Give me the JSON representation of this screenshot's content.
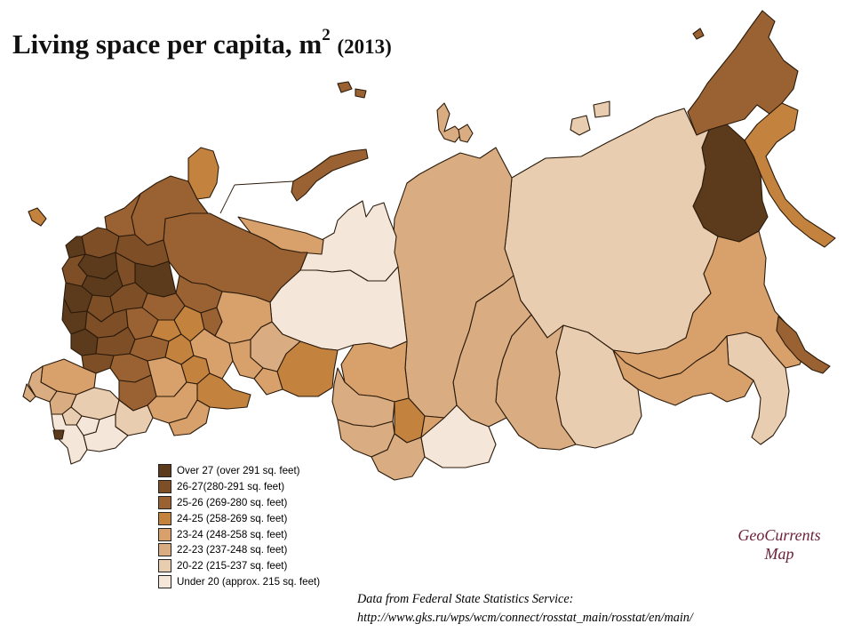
{
  "title": {
    "main": "Living space per capita, m",
    "superscript": "2",
    "year": "(2013)"
  },
  "legend": {
    "items": [
      {
        "label": "Over 27 (over  291 sq. feet)",
        "color": "#5c3a1c"
      },
      {
        "label": "26-27(280-291  sq. feet)",
        "color": "#7e4e26"
      },
      {
        "label": "25-26 (269-280  sq. feet)",
        "color": "#9a6232"
      },
      {
        "label": "24-25 (258-269  sq. feet)",
        "color": "#c3833f"
      },
      {
        "label": "23-24 (248-258  sq. feet)",
        "color": "#d8a06a"
      },
      {
        "label": "22-23 (237-248  sq. feet)",
        "color": "#d9ac82"
      },
      {
        "label": "20-22 (215-237  sq. feet)",
        "color": "#e9cdb0"
      },
      {
        "label": "Under 20 (approx. 215 sq. feet)",
        "color": "#f5e6da"
      }
    ]
  },
  "branding": {
    "line1": "GeoCurrents",
    "line2": "Map"
  },
  "source": {
    "line1": "Data from Federal State Statistics Service:",
    "line2": "http://www.gks.ru/wps/wcm/connect/rosstat_main/rosstat/en/main/"
  }
}
